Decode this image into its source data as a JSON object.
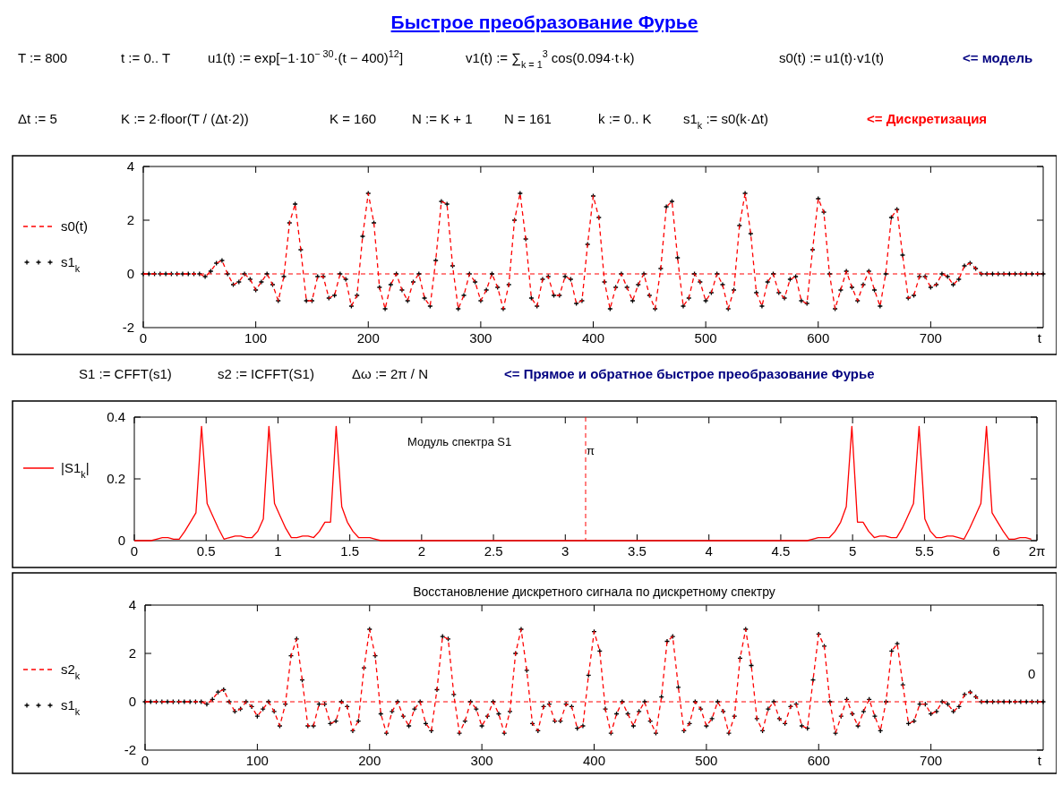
{
  "chart_data": [
    {
      "type": "line",
      "title": "Быстрое преобразование Фурье",
      "xlabel": "t",
      "annotations": [
        "T := 800",
        "t := 0.. T",
        "u1(t) := exp[−1·10$^{− 30}$·(t − 400)$^{12}$]",
        "v1(t) := ∑$_{k = 1}$$^{3}$ cos(0.094·t·k)",
        "s0(t) := u1(t)·v1(t)",
        "<= модель",
        "Δt := 5",
        "K := 2·floor(T / (Δt·2))",
        "K = 160",
        "N := K + 1",
        "N = 161",
        "k := 0.. K",
        "s1$_{k}$ := s0(k·Δt)",
        "<= Дискретизация"
      ],
      "x": [
        0,
        5,
        10,
        15,
        20,
        25,
        30,
        35,
        40,
        45,
        50,
        55,
        60,
        65,
        70,
        75,
        80,
        85,
        90,
        95,
        100,
        105,
        110,
        115,
        120,
        125,
        130,
        135,
        140,
        145,
        150,
        155,
        160,
        165,
        170,
        175,
        180,
        185,
        190,
        195,
        200,
        205,
        210,
        215,
        220,
        225,
        230,
        235,
        240,
        245,
        250,
        255,
        260,
        265,
        270,
        275,
        280,
        285,
        290,
        295,
        300,
        305,
        310,
        315,
        320,
        325,
        330,
        335,
        340,
        345,
        350,
        355,
        360,
        365,
        370,
        375,
        380,
        385,
        390,
        395,
        400,
        405,
        410,
        415,
        420,
        425,
        430,
        435,
        440,
        445,
        450,
        455,
        460,
        465,
        470,
        475,
        480,
        485,
        490,
        495,
        500,
        505,
        510,
        515,
        520,
        525,
        530,
        535,
        540,
        545,
        550,
        555,
        560,
        565,
        570,
        575,
        580,
        585,
        590,
        595,
        600,
        605,
        610,
        615,
        620,
        625,
        630,
        635,
        640,
        645,
        650,
        655,
        660,
        665,
        670,
        675,
        680,
        685,
        690,
        695,
        700,
        705,
        710,
        715,
        720,
        725,
        730,
        735,
        740,
        745,
        750,
        755,
        760,
        765,
        770,
        775,
        780,
        785,
        790,
        795,
        800
      ],
      "series": [
        {
          "name": "s0(t)",
          "type": "line",
          "line_style": "dashed",
          "color": "#ff0000",
          "values": [
            0,
            0,
            0,
            0,
            0,
            0,
            0,
            0,
            0,
            0,
            0,
            -0.1,
            0.1,
            0.4,
            0.5,
            0,
            -0.4,
            -0.3,
            0,
            -0.2,
            -0.6,
            -0.3,
            0,
            -0.4,
            -1,
            -0.1,
            1.9,
            2.6,
            0.9,
            -1,
            -1,
            -0.1,
            -0.1,
            -0.9,
            -0.8,
            0,
            -0.2,
            -1.2,
            -0.8,
            1.4,
            3,
            1.9,
            -0.5,
            -1.3,
            -0.4,
            0,
            -0.6,
            -1,
            -0.3,
            0,
            -0.9,
            -1.2,
            0.5,
            2.7,
            2.6,
            0.3,
            -1.3,
            -0.8,
            0,
            -0.3,
            -1,
            -0.6,
            0,
            -0.5,
            -1.3,
            -0.4,
            2,
            3,
            1.3,
            -0.9,
            -1.2,
            -0.2,
            -0.1,
            -0.8,
            -0.8,
            -0.1,
            -0.2,
            -1.1,
            -1,
            1.1,
            2.9,
            2.1,
            -0.3,
            -1.3,
            -0.5,
            0,
            -0.5,
            -1,
            -0.4,
            0,
            -0.8,
            -1.3,
            0.2,
            2.5,
            2.7,
            0.6,
            -1.2,
            -0.9,
            0,
            -0.3,
            -1,
            -0.7,
            0,
            -0.4,
            -1.3,
            -0.6,
            1.8,
            3,
            1.5,
            -0.7,
            -1.2,
            -0.3,
            0,
            -0.7,
            -0.9,
            -0.2,
            -0.1,
            -1,
            -1.1,
            0.9,
            2.8,
            2.3,
            0,
            -1.3,
            -0.6,
            0.1,
            -0.5,
            -1,
            -0.4,
            0.1,
            -0.6,
            -1.2,
            0,
            2.1,
            2.4,
            0.7,
            -0.9,
            -0.8,
            -0.1,
            -0.1,
            -0.5,
            -0.4,
            0,
            -0.1,
            -0.4,
            -0.2,
            0.3,
            0.4,
            0.2,
            0,
            0,
            0,
            0,
            0,
            0,
            0,
            0,
            0,
            0,
            0,
            0
          ]
        },
        {
          "name": "s1$_{k}$",
          "type": "scatter",
          "marker": "cross",
          "color": "#000000",
          "values": [
            0,
            0,
            0,
            0,
            0,
            0,
            0,
            0,
            0,
            0,
            0,
            -0.1,
            0.1,
            0.4,
            0.5,
            0,
            -0.4,
            -0.3,
            0,
            -0.2,
            -0.6,
            -0.3,
            0,
            -0.4,
            -1,
            -0.1,
            1.9,
            2.6,
            0.9,
            -1,
            -1,
            -0.1,
            -0.1,
            -0.9,
            -0.8,
            0,
            -0.2,
            -1.2,
            -0.8,
            1.4,
            3,
            1.9,
            -0.5,
            -1.3,
            -0.4,
            0,
            -0.6,
            -1,
            -0.3,
            0,
            -0.9,
            -1.2,
            0.5,
            2.7,
            2.6,
            0.3,
            -1.3,
            -0.8,
            0,
            -0.3,
            -1,
            -0.6,
            0,
            -0.5,
            -1.3,
            -0.4,
            2,
            3,
            1.3,
            -0.9,
            -1.2,
            -0.2,
            -0.1,
            -0.8,
            -0.8,
            -0.1,
            -0.2,
            -1.1,
            -1,
            1.1,
            2.9,
            2.1,
            -0.3,
            -1.3,
            -0.5,
            0,
            -0.5,
            -1,
            -0.4,
            0,
            -0.8,
            -1.3,
            0.2,
            2.5,
            2.7,
            0.6,
            -1.2,
            -0.9,
            0,
            -0.3,
            -1,
            -0.7,
            0,
            -0.4,
            -1.3,
            -0.6,
            1.8,
            3,
            1.5,
            -0.7,
            -1.2,
            -0.3,
            0,
            -0.7,
            -0.9,
            -0.2,
            -0.1,
            -1,
            -1.1,
            0.9,
            2.8,
            2.3,
            0,
            -1.3,
            -0.6,
            0.1,
            -0.5,
            -1,
            -0.4,
            0.1,
            -0.6,
            -1.2,
            0,
            2.1,
            2.4,
            0.7,
            -0.9,
            -0.8,
            -0.1,
            -0.1,
            -0.5,
            -0.4,
            0,
            -0.1,
            -0.4,
            -0.2,
            0.3,
            0.4,
            0.2,
            0,
            0,
            0,
            0,
            0,
            0,
            0,
            0,
            0,
            0,
            0,
            0
          ]
        }
      ],
      "xlim": [
        0,
        800
      ],
      "ylim": [
        -2,
        4
      ],
      "xticks": [
        0,
        100,
        200,
        300,
        400,
        500,
        600,
        700
      ],
      "yticks": [
        -2,
        0,
        2,
        4
      ],
      "ref_lines": [
        {
          "axis": "y",
          "value": 0,
          "color": "#ff0000",
          "line_style": "dashed"
        }
      ],
      "legend": "left"
    },
    {
      "type": "line",
      "annotations": [
        "S1 := CFFT(s1)",
        "s2 := ICFFT(S1)",
        "Δω := 2π / N",
        "<= Прямое и обратное быстрое преобразование Фурье",
        "Модуль спектра S1"
      ],
      "x": [
        0,
        0.039,
        0.078,
        0.117,
        0.156,
        0.195,
        0.234,
        0.273,
        0.312,
        0.351,
        0.39,
        0.429,
        0.468,
        0.507,
        0.546,
        0.585,
        0.624,
        0.663,
        0.702,
        0.741,
        0.78,
        0.82,
        0.859,
        0.898,
        0.937,
        0.976,
        1.015,
        1.054,
        1.093,
        1.132,
        1.171,
        1.21,
        1.249,
        1.288,
        1.327,
        1.366,
        1.405,
        1.444,
        1.483,
        1.522,
        1.561,
        1.6,
        1.639,
        1.678,
        1.717,
        1.756,
        1.795,
        1.834,
        1.873,
        1.912,
        1.951,
        1.99,
        2.029,
        2.068,
        2.107,
        2.146,
        2.185,
        2.224,
        2.263,
        2.302,
        2.341,
        2.381,
        2.42,
        2.459,
        2.498,
        2.537,
        2.576,
        2.615,
        2.654,
        2.693,
        2.732,
        2.771,
        2.81,
        2.849,
        2.888,
        2.927,
        2.966,
        3.005,
        3.044,
        3.083,
        3.122,
        3.161,
        3.2,
        3.239,
        3.278,
        3.317,
        3.356,
        3.395,
        3.434,
        3.473,
        3.512,
        3.551,
        3.59,
        3.629,
        3.668,
        3.707,
        3.746,
        3.785,
        3.824,
        3.863,
        3.902,
        3.942,
        3.981,
        4.02,
        4.059,
        4.098,
        4.137,
        4.176,
        4.215,
        4.254,
        4.293,
        4.332,
        4.371,
        4.41,
        4.449,
        4.488,
        4.527,
        4.566,
        4.605,
        4.644,
        4.683,
        4.722,
        4.761,
        4.8,
        4.839,
        4.878,
        4.917,
        4.956,
        4.995,
        5.034,
        5.073,
        5.112,
        5.151,
        5.19,
        5.229,
        5.268,
        5.307,
        5.346,
        5.385,
        5.424,
        5.463,
        5.503,
        5.542,
        5.581,
        5.62,
        5.659,
        5.698,
        5.737,
        5.776,
        5.815,
        5.854,
        5.893,
        5.932,
        5.971,
        6.01,
        6.049,
        6.088,
        6.127,
        6.166,
        6.205,
        6.244
      ],
      "series": [
        {
          "name": "|S1$_{k}$|",
          "type": "line",
          "line_style": "solid",
          "color": "#ff0000",
          "values": [
            0,
            0,
            0,
            0,
            0.005,
            0.01,
            0.01,
            0.005,
            0.005,
            0.03,
            0.06,
            0.09,
            0.37,
            0.12,
            0.08,
            0.04,
            0.005,
            0.01,
            0.015,
            0.015,
            0.01,
            0.01,
            0.03,
            0.07,
            0.37,
            0.12,
            0.08,
            0.04,
            0.01,
            0.01,
            0.015,
            0.015,
            0.01,
            0.03,
            0.06,
            0.06,
            0.37,
            0.11,
            0.06,
            0.03,
            0.01,
            0.01,
            0.01,
            0.005,
            0,
            0,
            0,
            0,
            0,
            0,
            0,
            0,
            0,
            0,
            0,
            0,
            0,
            0,
            0,
            0,
            0,
            0,
            0,
            0,
            0,
            0,
            0,
            0,
            0,
            0,
            0,
            0,
            0,
            0,
            0,
            0,
            0,
            0,
            0,
            0,
            0,
            0,
            0,
            0,
            0,
            0,
            0,
            0,
            0,
            0,
            0,
            0,
            0,
            0,
            0,
            0,
            0,
            0,
            0,
            0,
            0,
            0,
            0,
            0,
            0,
            0,
            0,
            0,
            0,
            0,
            0,
            0,
            0,
            0,
            0,
            0,
            0,
            0,
            0,
            0,
            0,
            0.005,
            0.01,
            0.01,
            0.01,
            0.03,
            0.06,
            0.11,
            0.37,
            0.06,
            0.06,
            0.03,
            0.01,
            0.015,
            0.015,
            0.01,
            0.01,
            0.04,
            0.08,
            0.12,
            0.37,
            0.07,
            0.03,
            0.01,
            0.01,
            0.015,
            0.015,
            0.01,
            0.005,
            0.04,
            0.08,
            0.12,
            0.37,
            0.09,
            0.06,
            0.03,
            0.005,
            0.005,
            0.01,
            0.01,
            0.005
          ]
        }
      ],
      "xlim": [
        0,
        6.2832
      ],
      "ylim": [
        0,
        0.4
      ],
      "xticks": [
        0,
        0.5,
        1,
        1.5,
        2,
        2.5,
        3,
        3.5,
        4,
        4.5,
        5,
        5.5,
        6,
        {
          "value": 6.2832,
          "label": "2π"
        }
      ],
      "yticks": [
        0,
        0.2,
        0.4
      ],
      "ref_lines": [
        {
          "axis": "x",
          "value": 3.1416,
          "label": "π",
          "color": "#ff0000",
          "line_style": "dashed"
        }
      ],
      "legend": "left"
    },
    {
      "type": "line",
      "title": "Восстановление дискретного сигнала по дискретному спектру",
      "xlabel": "t",
      "annotations": [
        "0"
      ],
      "x": [
        0,
        5,
        10,
        15,
        20,
        25,
        30,
        35,
        40,
        45,
        50,
        55,
        60,
        65,
        70,
        75,
        80,
        85,
        90,
        95,
        100,
        105,
        110,
        115,
        120,
        125,
        130,
        135,
        140,
        145,
        150,
        155,
        160,
        165,
        170,
        175,
        180,
        185,
        190,
        195,
        200,
        205,
        210,
        215,
        220,
        225,
        230,
        235,
        240,
        245,
        250,
        255,
        260,
        265,
        270,
        275,
        280,
        285,
        290,
        295,
        300,
        305,
        310,
        315,
        320,
        325,
        330,
        335,
        340,
        345,
        350,
        355,
        360,
        365,
        370,
        375,
        380,
        385,
        390,
        395,
        400,
        405,
        410,
        415,
        420,
        425,
        430,
        435,
        440,
        445,
        450,
        455,
        460,
        465,
        470,
        475,
        480,
        485,
        490,
        495,
        500,
        505,
        510,
        515,
        520,
        525,
        530,
        535,
        540,
        545,
        550,
        555,
        560,
        565,
        570,
        575,
        580,
        585,
        590,
        595,
        600,
        605,
        610,
        615,
        620,
        625,
        630,
        635,
        640,
        645,
        650,
        655,
        660,
        665,
        670,
        675,
        680,
        685,
        690,
        695,
        700,
        705,
        710,
        715,
        720,
        725,
        730,
        735,
        740,
        745,
        750,
        755,
        760,
        765,
        770,
        775,
        780,
        785,
        790,
        795,
        800
      ],
      "series": [
        {
          "name": "s2$_{k}$",
          "type": "line",
          "line_style": "dashed",
          "color": "#ff0000",
          "values": [
            0,
            0,
            0,
            0,
            0,
            0,
            0,
            0,
            0,
            0,
            0,
            -0.1,
            0.1,
            0.4,
            0.5,
            0,
            -0.4,
            -0.3,
            0,
            -0.2,
            -0.6,
            -0.3,
            0,
            -0.4,
            -1,
            -0.1,
            1.9,
            2.6,
            0.9,
            -1,
            -1,
            -0.1,
            -0.1,
            -0.9,
            -0.8,
            0,
            -0.2,
            -1.2,
            -0.8,
            1.4,
            3,
            1.9,
            -0.5,
            -1.3,
            -0.4,
            0,
            -0.6,
            -1,
            -0.3,
            0,
            -0.9,
            -1.2,
            0.5,
            2.7,
            2.6,
            0.3,
            -1.3,
            -0.8,
            0,
            -0.3,
            -1,
            -0.6,
            0,
            -0.5,
            -1.3,
            -0.4,
            2,
            3,
            1.3,
            -0.9,
            -1.2,
            -0.2,
            -0.1,
            -0.8,
            -0.8,
            -0.1,
            -0.2,
            -1.1,
            -1,
            1.1,
            2.9,
            2.1,
            -0.3,
            -1.3,
            -0.5,
            0,
            -0.5,
            -1,
            -0.4,
            0,
            -0.8,
            -1.3,
            0.2,
            2.5,
            2.7,
            0.6,
            -1.2,
            -0.9,
            0,
            -0.3,
            -1,
            -0.7,
            0,
            -0.4,
            -1.3,
            -0.6,
            1.8,
            3,
            1.5,
            -0.7,
            -1.2,
            -0.3,
            0,
            -0.7,
            -0.9,
            -0.2,
            -0.1,
            -1,
            -1.1,
            0.9,
            2.8,
            2.3,
            0,
            -1.3,
            -0.6,
            0.1,
            -0.5,
            -1,
            -0.4,
            0.1,
            -0.6,
            -1.2,
            0,
            2.1,
            2.4,
            0.7,
            -0.9,
            -0.8,
            -0.1,
            -0.1,
            -0.5,
            -0.4,
            0,
            -0.1,
            -0.4,
            -0.2,
            0.3,
            0.4,
            0.2,
            0,
            0,
            0,
            0,
            0,
            0,
            0,
            0,
            0,
            0,
            0,
            0
          ]
        },
        {
          "name": "s1$_{k}$",
          "type": "scatter",
          "marker": "cross",
          "color": "#000000",
          "values": [
            0,
            0,
            0,
            0,
            0,
            0,
            0,
            0,
            0,
            0,
            0,
            -0.1,
            0.1,
            0.4,
            0.5,
            0,
            -0.4,
            -0.3,
            0,
            -0.2,
            -0.6,
            -0.3,
            0,
            -0.4,
            -1,
            -0.1,
            1.9,
            2.6,
            0.9,
            -1,
            -1,
            -0.1,
            -0.1,
            -0.9,
            -0.8,
            0,
            -0.2,
            -1.2,
            -0.8,
            1.4,
            3,
            1.9,
            -0.5,
            -1.3,
            -0.4,
            0,
            -0.6,
            -1,
            -0.3,
            0,
            -0.9,
            -1.2,
            0.5,
            2.7,
            2.6,
            0.3,
            -1.3,
            -0.8,
            0,
            -0.3,
            -1,
            -0.6,
            0,
            -0.5,
            -1.3,
            -0.4,
            2,
            3,
            1.3,
            -0.9,
            -1.2,
            -0.2,
            -0.1,
            -0.8,
            -0.8,
            -0.1,
            -0.2,
            -1.1,
            -1,
            1.1,
            2.9,
            2.1,
            -0.3,
            -1.3,
            -0.5,
            0,
            -0.5,
            -1,
            -0.4,
            0,
            -0.8,
            -1.3,
            0.2,
            2.5,
            2.7,
            0.6,
            -1.2,
            -0.9,
            0,
            -0.3,
            -1,
            -0.7,
            0,
            -0.4,
            -1.3,
            -0.6,
            1.8,
            3,
            1.5,
            -0.7,
            -1.2,
            -0.3,
            0,
            -0.7,
            -0.9,
            -0.2,
            -0.1,
            -1,
            -1.1,
            0.9,
            2.8,
            2.3,
            0,
            -1.3,
            -0.6,
            0.1,
            -0.5,
            -1,
            -0.4,
            0.1,
            -0.6,
            -1.2,
            0,
            2.1,
            2.4,
            0.7,
            -0.9,
            -0.8,
            -0.1,
            -0.1,
            -0.5,
            -0.4,
            0,
            -0.1,
            -0.4,
            -0.2,
            0.3,
            0.4,
            0.2,
            0,
            0,
            0,
            0,
            0,
            0,
            0,
            0,
            0,
            0,
            0,
            0
          ]
        }
      ],
      "xlim": [
        0,
        800
      ],
      "ylim": [
        -2,
        4
      ],
      "xticks": [
        0,
        100,
        200,
        300,
        400,
        500,
        600,
        700
      ],
      "yticks": [
        -2,
        0,
        2,
        4
      ],
      "ref_lines": [
        {
          "axis": "y",
          "value": 0,
          "color": "#ff0000",
          "line_style": "dashed"
        }
      ],
      "legend": "left"
    }
  ]
}
